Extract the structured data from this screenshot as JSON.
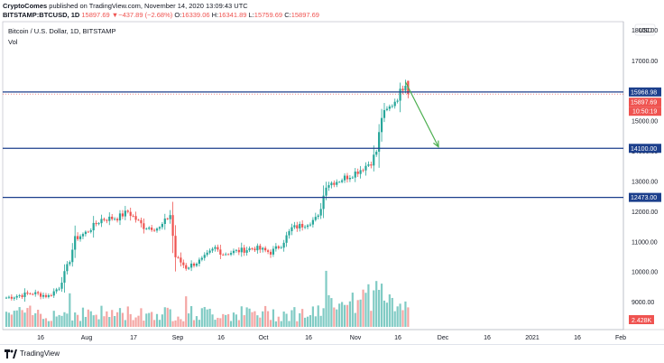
{
  "header": {
    "author": "CryptoComes",
    "published_text": "published on TradingView.com, November 14, 2020 13:09:43 UTC",
    "symbol": "BITSTAMP:BTCUSD, 1D",
    "last": "15897.69",
    "change": "▼−437.89 (−2.68%)",
    "o_label": "O:",
    "o_value": "16339.06",
    "h_label": "H:",
    "h_value": "16341.89",
    "l_label": "L:",
    "l_value": "15759.69",
    "c_label": "C:",
    "c_value": "15897.69"
  },
  "legend": {
    "title": "Bitcoin / U.S. Dollar, 1D, BITSTAMP",
    "volume_label": "Vol"
  },
  "axis": {
    "currency": "USD",
    "top_tick": "18000.00"
  },
  "price_labels": {
    "resistance": "15968.98",
    "last_price": "15897.69",
    "countdown": "10:50:19",
    "support_1": "14100.00",
    "support_2": "12473.00",
    "volume": "2.428K"
  },
  "footer": {
    "brand": "TradingView"
  },
  "colors": {
    "up": "#26a69a",
    "down": "#ef5350",
    "vol_up": "#80cbc4",
    "vol_down": "#f4a6a4",
    "level_line": "#1c3f8c",
    "arrow": "#4caf50",
    "label_bg": "#1c3f8c"
  },
  "chart_data": {
    "type": "candlestick",
    "title": "Bitcoin / U.S. Dollar, 1D, BITSTAMP",
    "ylim": [
      8300,
      18000
    ],
    "y_ticks": [
      9000,
      10000,
      11000,
      12000,
      13000,
      14000,
      15000,
      16000,
      17000
    ],
    "y_tick_labels": [
      "9000.00",
      "10000.00",
      "11000.00",
      "12000.00",
      "13000.00",
      "14000.00",
      "15000.00",
      "16000.00",
      "17000.00"
    ],
    "x_tick_labels": [
      "16",
      "Aug",
      "17",
      "Sep",
      "16",
      "Oct",
      "16",
      "Nov",
      "16",
      "Dec",
      "16",
      "2021",
      "16",
      "Feb"
    ],
    "horizontal_levels": [
      15968.98,
      14100.0,
      12473.0
    ],
    "projection_arrow": {
      "from": [
        16300,
        "Nov 13"
      ],
      "to": [
        14150,
        "Nov 30"
      ]
    },
    "anchors": [
      [
        0,
        9150
      ],
      [
        10,
        9300
      ],
      [
        16,
        9200
      ],
      [
        20,
        9500
      ],
      [
        24,
        10400
      ],
      [
        26,
        11100
      ],
      [
        30,
        11300
      ],
      [
        36,
        11750
      ],
      [
        42,
        11800
      ],
      [
        46,
        12000
      ],
      [
        52,
        11500
      ],
      [
        58,
        11450
      ],
      [
        62,
        11900
      ],
      [
        64,
        10500
      ],
      [
        68,
        10150
      ],
      [
        74,
        10400
      ],
      [
        79,
        10800
      ],
      [
        82,
        10600
      ],
      [
        88,
        10700
      ],
      [
        94,
        10800
      ],
      [
        100,
        10650
      ],
      [
        104,
        10900
      ],
      [
        108,
        11450
      ],
      [
        112,
        11550
      ],
      [
        118,
        11800
      ],
      [
        121,
        12900
      ],
      [
        126,
        13050
      ],
      [
        130,
        13200
      ],
      [
        134,
        13400
      ],
      [
        138,
        13650
      ],
      [
        140,
        14000
      ],
      [
        142,
        15150
      ],
      [
        145,
        15450
      ],
      [
        148,
        15800
      ],
      [
        151,
        16300
      ],
      [
        152,
        15898
      ]
    ],
    "candle_count": 153,
    "last_candle": {
      "open": 16339.06,
      "high": 16341.89,
      "low": 15759.69,
      "close": 15897.69
    },
    "volume_last": "2.428K"
  }
}
